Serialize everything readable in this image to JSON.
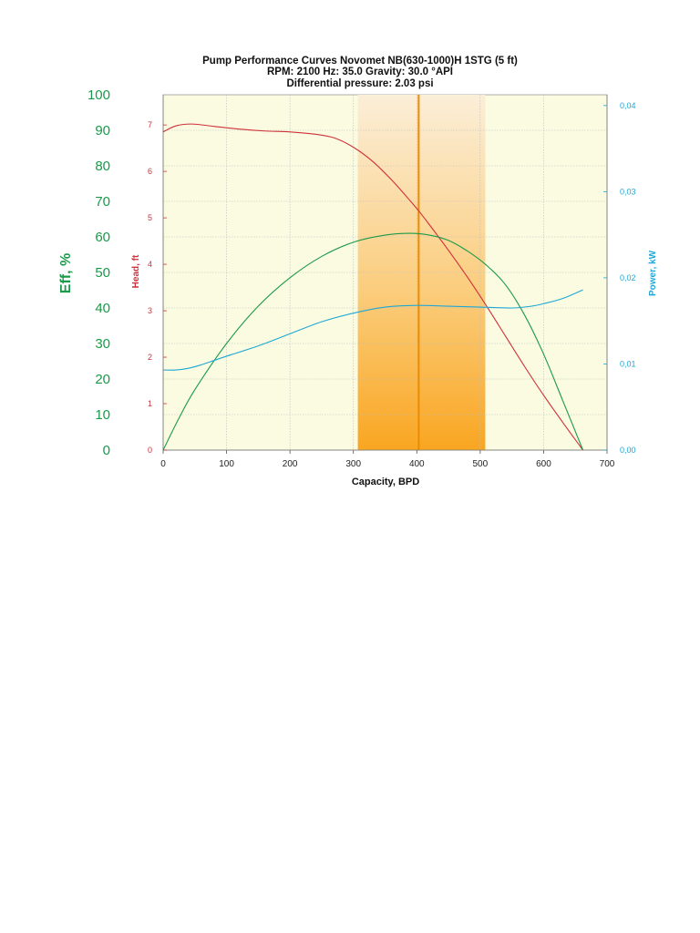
{
  "chart_data": {
    "type": "line",
    "title": "Pump Performance Curves   Novomet NB(630-1000)H  1STG (5 ft)",
    "subtitle_lines": [
      "RPM: 2100    Hz: 35.0    Gravity: 30.0 °API",
      "Differential pressure: 2.03 psi"
    ],
    "xlabel": "Capacity, BPD",
    "xlim": [
      0,
      700
    ],
    "x_ticks": [
      "0",
      "100",
      "200",
      "300",
      "400",
      "500",
      "600",
      "700"
    ],
    "axes": {
      "eff": {
        "label": "Eff, %",
        "range": [
          0,
          100
        ],
        "ticks": [
          "0",
          "10",
          "20",
          "30",
          "40",
          "50",
          "60",
          "70",
          "80",
          "90",
          "100"
        ],
        "color": "#1a9a4a"
      },
      "head": {
        "label": "Head, ft",
        "range": [
          0,
          7.65
        ],
        "ticks": [
          "0",
          "1",
          "2",
          "3",
          "4",
          "5",
          "6",
          "7"
        ],
        "color": "#d0303a"
      },
      "power": {
        "label": "Power, kW",
        "range": [
          0,
          0.04125
        ],
        "ticks": [
          "0,00",
          "0,01",
          "0,02",
          "0,03",
          "0,04"
        ],
        "color": "#1ea7d6"
      }
    },
    "operating_range": [
      307,
      508
    ],
    "operating_point": 403,
    "grid": true,
    "series": [
      {
        "axis": "head",
        "color": "#d0303a",
        "x": [
          0,
          20,
          45,
          80,
          120,
          160,
          200,
          240,
          270,
          300,
          330,
          360,
          390,
          403,
          420,
          450,
          480,
          510,
          540,
          570,
          600,
          630,
          662
        ],
        "values": [
          6.85,
          6.98,
          7.02,
          6.97,
          6.91,
          6.87,
          6.85,
          6.8,
          6.72,
          6.52,
          6.22,
          5.82,
          5.36,
          5.15,
          4.85,
          4.3,
          3.72,
          3.1,
          2.45,
          1.8,
          1.18,
          0.6,
          0.0
        ]
      },
      {
        "axis": "eff",
        "color": "#1a9a4a",
        "x": [
          0,
          25,
          50,
          100,
          150,
          200,
          250,
          300,
          350,
          390,
          420,
          450,
          480,
          510,
          540,
          570,
          600,
          630,
          662
        ],
        "values": [
          0,
          9,
          17,
          30,
          40.5,
          48.5,
          54.5,
          58.5,
          60.5,
          61,
          60.5,
          59,
          56,
          52,
          46.5,
          38,
          27,
          14,
          0
        ]
      },
      {
        "axis": "power",
        "color": "#1ea7d6",
        "x": [
          0,
          20,
          40,
          60,
          80,
          100,
          150,
          200,
          250,
          300,
          350,
          400,
          450,
          500,
          550,
          580,
          600,
          630,
          662
        ],
        "values": [
          0.0093,
          0.0093,
          0.0095,
          0.0099,
          0.0104,
          0.0109,
          0.0121,
          0.0135,
          0.0149,
          0.0159,
          0.0166,
          0.0168,
          0.0167,
          0.0166,
          0.0165,
          0.0167,
          0.017,
          0.0176,
          0.0186
        ]
      }
    ]
  }
}
